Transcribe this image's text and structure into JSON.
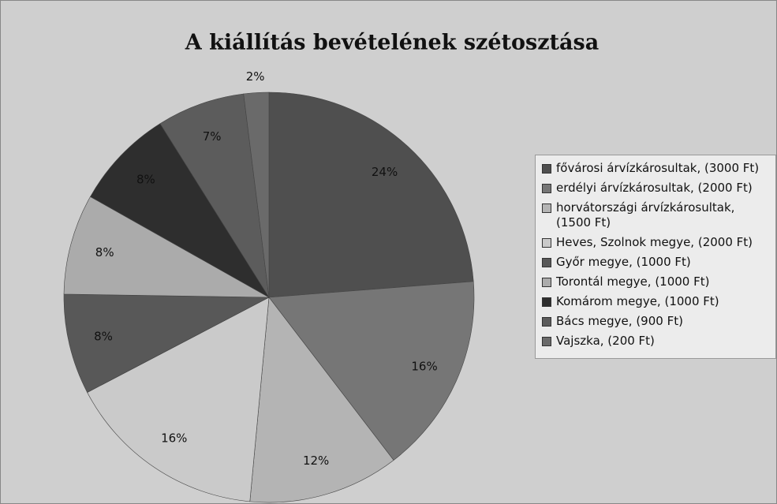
{
  "chart_data": {
    "type": "pie",
    "title": "A kiállítás bevételének szétosztása",
    "categories": [
      "fővárosi árvízkárosultak, (3000 Ft)",
      "erdélyi árvízkárosultak, (2000 Ft)",
      "horvátországi árvízkárosultak, (1500 Ft)",
      "Heves, Szolnok megye, (2000 Ft)",
      "Győr megye, (1000 Ft)",
      "Torontál megye, (1000 Ft)",
      "Komárom megye, (1000 Ft)",
      "Bács megye, (900 Ft)",
      "Vajszka, (200 Ft)"
    ],
    "values": [
      24,
      16,
      12,
      16,
      8,
      8,
      8,
      7,
      2
    ],
    "value_labels": [
      "24%",
      "16%",
      "12%",
      "16%",
      "8%",
      "8%",
      "8%",
      "7%",
      "2%"
    ],
    "colors": [
      "#4f4f4f",
      "#767676",
      "#b4b4b4",
      "#cacaca",
      "#585858",
      "#ababab",
      "#2e2e2e",
      "#5c5c5c",
      "#6a6a6a"
    ]
  }
}
